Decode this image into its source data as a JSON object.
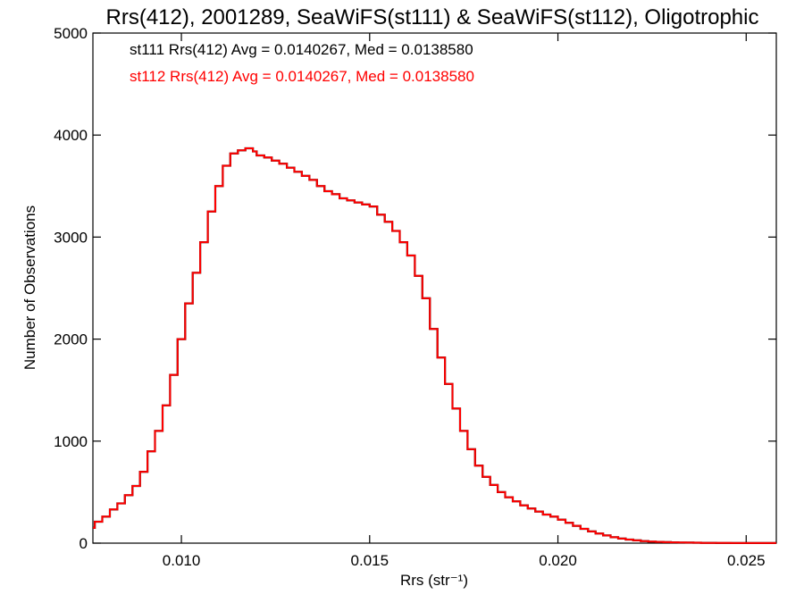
{
  "chart_data": {
    "type": "line",
    "title": "Rrs(412), 2001289, SeaWiFS(st111) & SeaWiFS(st112), Oligotrophic",
    "xlabel": "Rrs (str⁻¹)",
    "ylabel": "Number of Observations",
    "xlim": [
      0.00765,
      0.0258
    ],
    "ylim": [
      0,
      5000
    ],
    "grid": false,
    "legend_position": "top-left",
    "x_ticks": [
      0.01,
      0.015,
      0.02,
      0.025
    ],
    "x_tick_labels": [
      "0.010",
      "0.015",
      "0.020",
      "0.025"
    ],
    "y_ticks": [
      0,
      1000,
      2000,
      3000,
      4000,
      5000
    ],
    "y_tick_labels": [
      "0",
      "1000",
      "2000",
      "3000",
      "4000",
      "5000"
    ],
    "annotations": [
      {
        "text": "st111 Rrs(412) Avg = 0.0140267, Med = 0.0138580",
        "color": "#000000"
      },
      {
        "text": "st112 Rrs(412) Avg = 0.0140267, Med = 0.0138580",
        "color": "#ff0000"
      }
    ],
    "series": [
      {
        "color_primary": "#000000",
        "color_overlay": "#ff0000",
        "step": "histogram",
        "x": [
          0.0077,
          0.0079,
          0.0081,
          0.0083,
          0.0085,
          0.0087,
          0.0089,
          0.0091,
          0.0093,
          0.0095,
          0.0097,
          0.0099,
          0.0101,
          0.0103,
          0.0105,
          0.0107,
          0.0109,
          0.0111,
          0.0113,
          0.0115,
          0.0117,
          0.0119,
          0.012,
          0.0122,
          0.0124,
          0.0126,
          0.0128,
          0.013,
          0.0132,
          0.0134,
          0.0136,
          0.0138,
          0.014,
          0.0142,
          0.0144,
          0.0146,
          0.0148,
          0.015,
          0.0152,
          0.0154,
          0.0156,
          0.0158,
          0.016,
          0.0162,
          0.0164,
          0.0166,
          0.0168,
          0.017,
          0.0172,
          0.0174,
          0.0176,
          0.0178,
          0.018,
          0.0182,
          0.0184,
          0.0186,
          0.0188,
          0.019,
          0.0192,
          0.0194,
          0.0196,
          0.0198,
          0.02,
          0.0202,
          0.0204,
          0.0206,
          0.0208,
          0.021,
          0.0212,
          0.0214,
          0.0216,
          0.0218,
          0.022,
          0.0222,
          0.0224,
          0.0226,
          0.0228,
          0.023,
          0.0232,
          0.0234,
          0.0236,
          0.0238,
          0.024,
          0.0242,
          0.0244,
          0.0246,
          0.0248,
          0.025,
          0.0252,
          0.0254,
          0.0256,
          0.0258
        ],
        "y": [
          150,
          210,
          260,
          330,
          390,
          470,
          560,
          700,
          900,
          1100,
          1350,
          1650,
          2000,
          2350,
          2650,
          2950,
          3250,
          3500,
          3700,
          3820,
          3850,
          3870,
          3840,
          3800,
          3780,
          3750,
          3720,
          3680,
          3640,
          3600,
          3560,
          3500,
          3450,
          3420,
          3380,
          3360,
          3340,
          3320,
          3300,
          3220,
          3150,
          3060,
          2950,
          2820,
          2620,
          2400,
          2100,
          1820,
          1560,
          1320,
          1100,
          920,
          760,
          650,
          570,
          500,
          450,
          410,
          370,
          340,
          310,
          280,
          260,
          230,
          200,
          170,
          140,
          115,
          95,
          75,
          58,
          45,
          35,
          27,
          20,
          15,
          12,
          10,
          8,
          6,
          5,
          4,
          3,
          3,
          2,
          2,
          1,
          1,
          1,
          1,
          1,
          1
        ]
      }
    ]
  }
}
